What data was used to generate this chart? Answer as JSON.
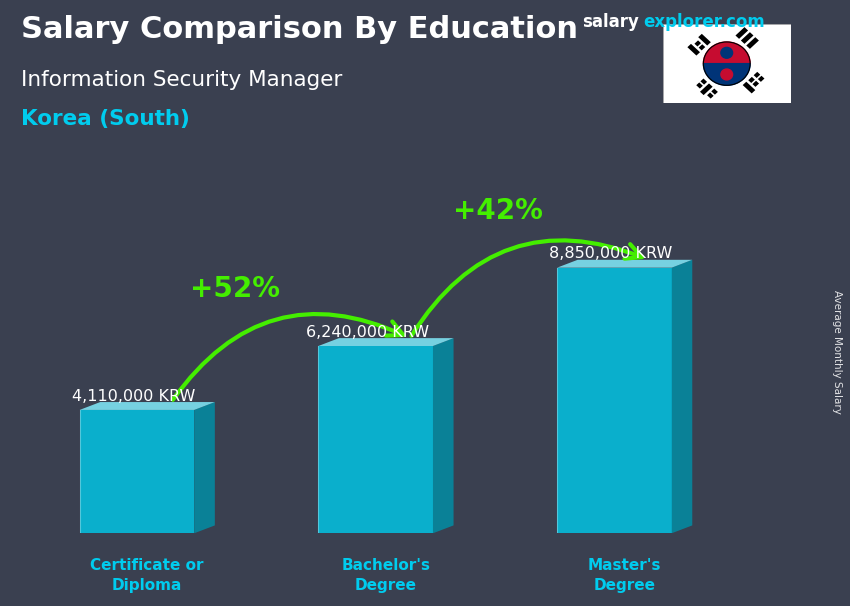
{
  "title": "Salary Comparison By Education",
  "subtitle1": "Information Security Manager",
  "subtitle2": "Korea (South)",
  "site_salary": "salary",
  "site_explorer": "explorer",
  "site_com": ".com",
  "ylabel": "Average Monthly Salary",
  "categories": [
    "Certificate or\nDiploma",
    "Bachelor's\nDegree",
    "Master's\nDegree"
  ],
  "values": [
    4110000,
    6240000,
    8850000
  ],
  "value_labels": [
    "4,110,000 KRW",
    "6,240,000 KRW",
    "8,850,000 KRW"
  ],
  "pct_labels": [
    "+52%",
    "+42%"
  ],
  "bar_face_color": "#00c8e8",
  "bar_top_color": "#80e8f8",
  "bar_side_color": "#0090a8",
  "arrow_color": "#44ee00",
  "title_color": "#ffffff",
  "subtitle1_color": "#ffffff",
  "subtitle2_color": "#00ccee",
  "value_label_color": "#ffffff",
  "pct_color": "#44ee00",
  "cat_label_color": "#00ccee",
  "site_color_salary": "#ffffff",
  "site_color_explorer": "#00ccee",
  "bg_color": "#3a4050",
  "ylim": [
    0,
    10500000
  ],
  "bar_alpha": 0.82
}
